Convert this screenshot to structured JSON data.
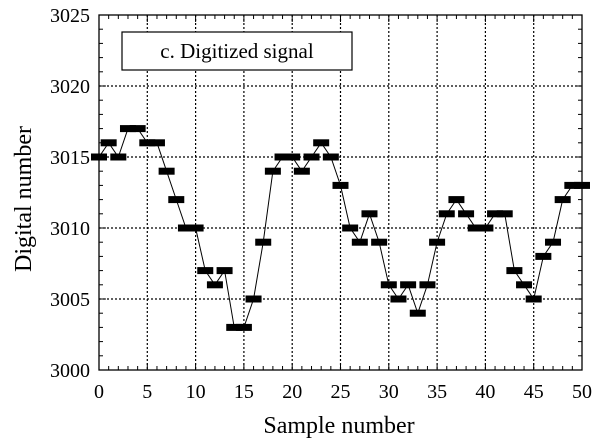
{
  "chart_data": {
    "type": "scatter",
    "title": "c. Digitized signal",
    "xlabel": "Sample number",
    "ylabel": "Digital number",
    "xlim": [
      0,
      50
    ],
    "ylim": [
      3000,
      3025
    ],
    "xticks": [
      0,
      5,
      10,
      15,
      20,
      25,
      30,
      35,
      40,
      45,
      50
    ],
    "yticks": [
      3000,
      3005,
      3010,
      3015,
      3020,
      3025
    ],
    "grid": true,
    "marker": "rectangle",
    "colors": {
      "marker": "#000000",
      "line": "#000000",
      "grid": "#000000"
    },
    "x": [
      0,
      1,
      2,
      3,
      4,
      5,
      6,
      7,
      8,
      9,
      10,
      11,
      12,
      13,
      14,
      15,
      16,
      17,
      18,
      19,
      20,
      21,
      22,
      23,
      24,
      25,
      26,
      27,
      28,
      29,
      30,
      31,
      32,
      33,
      34,
      35,
      36,
      37,
      38,
      39,
      40,
      41,
      42,
      43,
      44,
      45,
      46,
      47,
      48,
      49,
      50
    ],
    "values": [
      3015,
      3016,
      3015,
      3017,
      3017,
      3016,
      3016,
      3014,
      3012,
      3010,
      3010,
      3007,
      3006,
      3007,
      3003,
      3003,
      3005,
      3009,
      3014,
      3015,
      3015,
      3014,
      3015,
      3016,
      3015,
      3013,
      3010,
      3009,
      3011,
      3009,
      3006,
      3005,
      3006,
      3004,
      3006,
      3009,
      3011,
      3012,
      3011,
      3010,
      3010,
      3011,
      3011,
      3007,
      3006,
      3005,
      3008,
      3009,
      3012,
      3013,
      3013
    ]
  }
}
